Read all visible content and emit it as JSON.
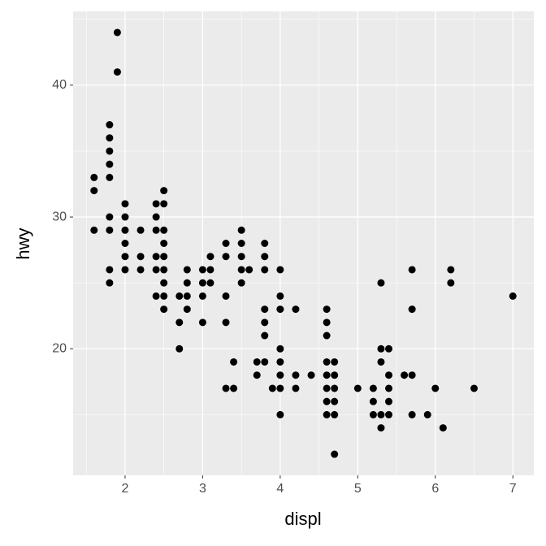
{
  "chart_data": {
    "type": "scatter",
    "x_label": "displ",
    "y_label": "hwy",
    "color": "#000000",
    "grid": true,
    "xlim": [
      1.33,
      7.27
    ],
    "ylim": [
      10.4,
      45.6
    ],
    "xticks": [
      2,
      3,
      4,
      5,
      6,
      7
    ],
    "yticks": [
      20,
      30,
      40
    ],
    "x": [
      1.6,
      1.6,
      1.6,
      1.8,
      1.8,
      1.8,
      1.8,
      1.8,
      1.8,
      1.8,
      1.8,
      1.8,
      1.9,
      1.9,
      2.0,
      2.0,
      2.0,
      2.0,
      2.0,
      2.0,
      2.2,
      2.2,
      2.2,
      2.4,
      2.4,
      2.4,
      2.4,
      2.4,
      2.4,
      2.5,
      2.5,
      2.5,
      2.5,
      2.5,
      2.5,
      2.5,
      2.5,
      2.5,
      2.7,
      2.7,
      2.7,
      2.8,
      2.8,
      2.8,
      2.8,
      3.0,
      3.0,
      3.0,
      3.0,
      3.1,
      3.1,
      3.1,
      3.3,
      3.3,
      3.3,
      3.3,
      3.3,
      3.4,
      3.4,
      3.5,
      3.5,
      3.5,
      3.5,
      3.5,
      3.6,
      3.7,
      3.7,
      3.8,
      3.8,
      3.8,
      3.8,
      3.8,
      3.8,
      3.8,
      3.9,
      4.0,
      4.0,
      4.0,
      4.0,
      4.0,
      4.0,
      4.0,
      4.0,
      4.2,
      4.2,
      4.2,
      4.4,
      4.6,
      4.6,
      4.6,
      4.6,
      4.6,
      4.6,
      4.6,
      4.6,
      4.7,
      4.7,
      4.7,
      4.7,
      4.7,
      4.7,
      5.0,
      5.2,
      5.2,
      5.2,
      5.3,
      5.3,
      5.3,
      5.3,
      5.3,
      5.4,
      5.4,
      5.4,
      5.4,
      5.4,
      5.6,
      5.7,
      5.7,
      5.7,
      5.7,
      5.9,
      6.0,
      6.1,
      6.2,
      6.2,
      6.5,
      7.0
    ],
    "values": [
      33,
      32,
      29,
      37,
      36,
      35,
      34,
      33,
      30,
      29,
      26,
      25,
      44,
      41,
      31,
      30,
      29,
      28,
      27,
      26,
      29,
      27,
      26,
      31,
      30,
      29,
      27,
      26,
      24,
      32,
      31,
      29,
      28,
      27,
      26,
      25,
      24,
      23,
      24,
      22,
      20,
      26,
      25,
      24,
      23,
      26,
      25,
      24,
      22,
      27,
      26,
      25,
      28,
      27,
      24,
      22,
      17,
      19,
      17,
      29,
      28,
      27,
      26,
      25,
      26,
      19,
      18,
      28,
      27,
      26,
      23,
      22,
      21,
      19,
      17,
      26,
      24,
      23,
      20,
      19,
      18,
      17,
      15,
      23,
      18,
      17,
      18,
      23,
      22,
      21,
      19,
      18,
      17,
      16,
      15,
      19,
      18,
      17,
      16,
      15,
      12,
      17,
      17,
      16,
      15,
      25,
      20,
      19,
      15,
      14,
      20,
      18,
      17,
      16,
      15,
      18,
      26,
      23,
      18,
      15,
      15,
      17,
      14,
      26,
      25,
      17,
      24
    ]
  }
}
